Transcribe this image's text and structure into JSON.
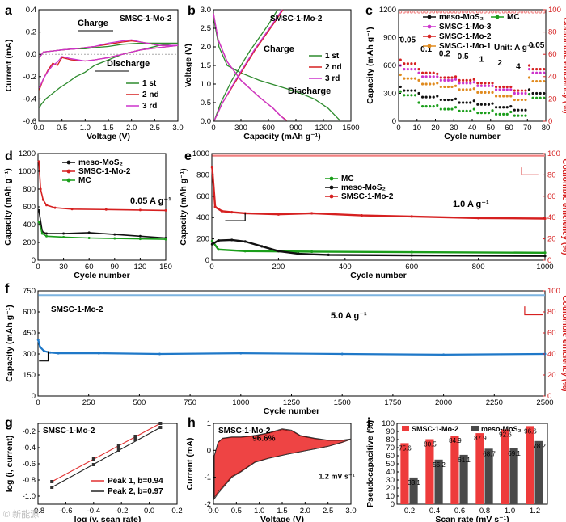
{
  "figure": {
    "watermark": "© 新能源"
  },
  "chart_data": [
    {
      "id": "a",
      "type": "line",
      "panel_label": "a",
      "title": "SMSC-1-Mo-2",
      "xlabel": "Voltage (V)",
      "ylabel": "Current (mA)",
      "xlim": [
        0,
        3
      ],
      "ylim": [
        -0.6,
        0.4
      ],
      "xticks": [
        0,
        0.5,
        1,
        1.5,
        2,
        2.5,
        3
      ],
      "xtick_labels": [
        "0.0",
        "0.5",
        "1.0",
        "1.5",
        "2.0",
        "2.5",
        "3.0"
      ],
      "yticks": [
        -0.6,
        -0.4,
        -0.2,
        0,
        0.2,
        0.4
      ],
      "ytick_labels": [
        "-0.6",
        "-0.4",
        "-0.2",
        "0.0",
        "0.2",
        "0.4"
      ],
      "annotations": [
        "Charge",
        "Discharge"
      ],
      "series": [
        {
          "name": "1 st",
          "color": "#2e8b2e",
          "x": [
            0.01,
            0.1,
            0.3,
            0.5,
            0.8,
            1.0,
            1.2,
            1.5,
            1.8,
            2.2,
            2.6,
            3.0,
            2.6,
            2.2,
            2.0,
            1.8,
            1.5,
            1.2,
            1.0,
            0.8,
            0.6,
            0.45,
            0.3,
            0.15,
            0.05,
            0.01
          ],
          "y": [
            -0.03,
            0.02,
            0.03,
            0.04,
            0.05,
            0.05,
            0.06,
            0.07,
            0.09,
            0.1,
            0.1,
            0.1,
            0.08,
            0.04,
            0.02,
            0.0,
            -0.05,
            -0.1,
            -0.16,
            -0.2,
            -0.26,
            -0.3,
            -0.35,
            -0.4,
            -0.45,
            -0.48
          ]
        },
        {
          "name": "2 nd",
          "color": "#d62020",
          "x": [
            0.01,
            0.1,
            0.3,
            0.5,
            0.8,
            1.0,
            1.2,
            1.5,
            1.8,
            2.0,
            2.2,
            2.6,
            3.0,
            2.6,
            2.2,
            2.0,
            1.8,
            1.5,
            1.2,
            1.0,
            0.7,
            0.5,
            0.4,
            0.3,
            0.2,
            0.1,
            0.01
          ],
          "y": [
            -0.03,
            0.02,
            0.03,
            0.04,
            0.05,
            0.06,
            0.07,
            0.09,
            0.11,
            0.12,
            0.11,
            0.08,
            0.08,
            0.06,
            0.04,
            0.02,
            0.0,
            -0.03,
            -0.05,
            -0.06,
            -0.05,
            -0.03,
            -0.1,
            -0.08,
            -0.14,
            -0.22,
            -0.32
          ]
        },
        {
          "name": "3 rd",
          "color": "#cc33cc",
          "x": [
            0.01,
            0.1,
            0.3,
            0.5,
            0.8,
            1.0,
            1.2,
            1.5,
            1.8,
            2.0,
            2.2,
            2.6,
            3.0,
            2.6,
            2.2,
            2.0,
            1.8,
            1.5,
            1.2,
            1.0,
            0.7,
            0.5,
            0.4,
            0.3,
            0.2,
            0.1,
            0.01
          ],
          "y": [
            -0.03,
            0.02,
            0.03,
            0.04,
            0.05,
            0.06,
            0.07,
            0.1,
            0.12,
            0.13,
            0.11,
            0.08,
            0.08,
            0.06,
            0.04,
            0.02,
            0.0,
            -0.03,
            -0.05,
            -0.06,
            -0.04,
            -0.02,
            -0.07,
            -0.1,
            -0.15,
            -0.22,
            -0.3
          ]
        }
      ]
    },
    {
      "id": "b",
      "type": "line",
      "panel_label": "b",
      "title": "SMSC-1-Mo-2",
      "xlabel": "Capacity (mAh g⁻¹)",
      "ylabel": "Voltage (V)",
      "xlim": [
        0,
        1500
      ],
      "ylim": [
        0,
        3
      ],
      "xticks": [
        0,
        300,
        600,
        900,
        1200,
        1500
      ],
      "xtick_labels": [
        "0",
        "300",
        "600",
        "900",
        "1200",
        "1500"
      ],
      "yticks": [
        0,
        0.5,
        1,
        1.5,
        2,
        2.5,
        3
      ],
      "ytick_labels": [
        "0.0",
        "0.5",
        "1.0",
        "1.5",
        "2.0",
        "2.5",
        "3.0"
      ],
      "annotations": [
        "Charge",
        "Discharge"
      ],
      "series": [
        {
          "name": "1 st",
          "color": "#2e8b2e",
          "x": [
            0,
            60,
            150,
            300,
            500,
            700,
            900,
            1100,
            1250,
            1380,
            700,
            600,
            400,
            200,
            80,
            10
          ],
          "y": [
            2.8,
            2.0,
            1.5,
            1.3,
            1.1,
            0.95,
            0.8,
            0.6,
            0.35,
            0.02,
            3.0,
            2.6,
            1.9,
            1.1,
            0.5,
            0.02
          ]
        },
        {
          "name": "2 nd",
          "color": "#d62020",
          "x": [
            0,
            50,
            150,
            300,
            500,
            650,
            730,
            800,
            760,
            650,
            450,
            250,
            100,
            10
          ],
          "y": [
            2.9,
            2.2,
            1.6,
            1.1,
            0.65,
            0.35,
            0.15,
            0.02,
            3.0,
            2.6,
            1.9,
            1.1,
            0.5,
            0.02
          ]
        },
        {
          "name": "3 rd",
          "color": "#cc33cc",
          "x": [
            0,
            50,
            150,
            300,
            500,
            650,
            730,
            790,
            750,
            640,
            440,
            240,
            100,
            10
          ],
          "y": [
            2.9,
            2.2,
            1.6,
            1.1,
            0.65,
            0.35,
            0.15,
            0.02,
            3.0,
            2.6,
            1.9,
            1.1,
            0.5,
            0.02
          ]
        }
      ]
    },
    {
      "id": "c",
      "type": "scatter",
      "panel_label": "c",
      "xlabel": "Cycle number",
      "ylabel": "Capacity (mAh g⁻¹)",
      "y2label": "Coulombic efficiency (%)",
      "xlim": [
        0,
        80
      ],
      "ylim": [
        0,
        1200
      ],
      "y2lim": [
        0,
        100
      ],
      "xticks": [
        0,
        10,
        20,
        30,
        40,
        50,
        60,
        70,
        80
      ],
      "yticks": [
        0,
        300,
        600,
        900,
        1200
      ],
      "y2ticks": [
        0,
        20,
        40,
        60,
        80,
        100
      ],
      "rate_labels": [
        "0.05",
        "0.1",
        "0.2",
        "0.5",
        "1",
        "2",
        "4",
        "0.05"
      ],
      "unit_note": "Unit: A g⁻¹",
      "series": [
        {
          "name": "meso-MoS₂",
          "color": "#111111",
          "levels": [
            330,
            260,
            230,
            200,
            180,
            150,
            120,
            300
          ]
        },
        {
          "name": "MC",
          "color": "#1a9e1a",
          "levels": [
            280,
            160,
            130,
            110,
            90,
            75,
            60,
            250
          ]
        },
        {
          "name": "SMSC-1-Mo-3",
          "color": "#cc33cc",
          "levels": [
            560,
            480,
            440,
            410,
            380,
            340,
            300,
            520
          ]
        },
        {
          "name": "SMSC-1-Mo-2",
          "color": "#d62020",
          "levels": [
            620,
            520,
            470,
            440,
            410,
            370,
            330,
            560
          ]
        },
        {
          "name": "SMSC-1-Mo-1",
          "color": "#e08a1e",
          "levels": [
            460,
            400,
            370,
            340,
            310,
            270,
            230,
            430
          ]
        }
      ],
      "ce_percent": 98
    },
    {
      "id": "d",
      "type": "scatter",
      "panel_label": "d",
      "xlabel": "Cycle number",
      "ylabel": "Capacity (mAh g⁻¹)",
      "xlim": [
        0,
        150
      ],
      "ylim": [
        0,
        1200
      ],
      "xticks": [
        0,
        30,
        60,
        90,
        120,
        150
      ],
      "yticks": [
        0,
        200,
        400,
        600,
        800,
        1000,
        1200
      ],
      "annotations": [
        "0.05 A g⁻¹"
      ],
      "series": [
        {
          "name": "meso-MoS₂",
          "color": "#111111",
          "x": [
            1,
            5,
            10,
            30,
            60,
            90,
            120,
            150
          ],
          "y": [
            560,
            320,
            300,
            300,
            310,
            290,
            270,
            250
          ]
        },
        {
          "name": "SMSC-1-Mo-2",
          "color": "#d62020",
          "x": [
            1,
            3,
            6,
            10,
            20,
            40,
            80,
            120,
            150
          ],
          "y": [
            1110,
            800,
            680,
            620,
            590,
            575,
            570,
            565,
            560
          ]
        },
        {
          "name": "MC",
          "color": "#1a9e1a",
          "x": [
            1,
            5,
            10,
            30,
            60,
            90,
            120,
            150
          ],
          "y": [
            430,
            300,
            270,
            260,
            250,
            245,
            240,
            235
          ]
        }
      ]
    },
    {
      "id": "e",
      "type": "scatter",
      "panel_label": "e",
      "xlabel": "Cycle number",
      "ylabel": "Capacity (mAh g⁻¹)",
      "y2label": "Coulombic efficiency (%)",
      "xlim": [
        0,
        1000
      ],
      "ylim": [
        0,
        1000
      ],
      "y2lim": [
        0,
        100
      ],
      "xticks": [
        0,
        200,
        400,
        600,
        800,
        1000
      ],
      "yticks": [
        0,
        200,
        400,
        600,
        800,
        1000
      ],
      "y2ticks": [
        0,
        20,
        40,
        60,
        80,
        100
      ],
      "annotations": [
        "1.0 A g⁻¹"
      ],
      "series": [
        {
          "name": "MC",
          "color": "#1a9e1a",
          "x": [
            1,
            20,
            100,
            300,
            600,
            1000
          ],
          "y": [
            180,
            100,
            85,
            80,
            75,
            70
          ]
        },
        {
          "name": "meso-MoS₂",
          "color": "#111111",
          "x": [
            1,
            20,
            60,
            100,
            150,
            200,
            260,
            350,
            600,
            1000
          ],
          "y": [
            150,
            185,
            190,
            175,
            130,
            85,
            60,
            50,
            45,
            40
          ]
        },
        {
          "name": "SMSC-1-Mo-2",
          "color": "#d62020",
          "x": [
            1,
            10,
            30,
            60,
            100,
            200,
            300,
            450,
            600,
            800,
            1000
          ],
          "y": [
            870,
            500,
            460,
            450,
            440,
            430,
            440,
            420,
            410,
            395,
            390
          ]
        }
      ],
      "ce_percent": 98
    },
    {
      "id": "f",
      "type": "scatter",
      "panel_label": "f",
      "title": "SMSC-1-Mo-2",
      "xlabel": "Cycle number",
      "ylabel": "Capacity (mAh g⁻¹)",
      "y2label": "Coulombic efficiency (%)",
      "xlim": [
        0,
        2500
      ],
      "ylim": [
        0,
        750
      ],
      "y2lim": [
        0,
        100
      ],
      "xticks": [
        0,
        250,
        500,
        750,
        1000,
        1250,
        1500,
        1750,
        2000,
        2250,
        2500
      ],
      "yticks": [
        0,
        150,
        300,
        450,
        600,
        750
      ],
      "y2ticks": [
        0,
        20,
        40,
        60,
        80,
        100
      ],
      "annotations": [
        "5.0 A g⁻¹"
      ],
      "series": [
        {
          "name": "SMSC-1-Mo-2",
          "color": "#1f78c8",
          "x": [
            1,
            10,
            30,
            60,
            100,
            300,
            600,
            1000,
            1500,
            2000,
            2500
          ],
          "y": [
            400,
            350,
            320,
            310,
            305,
            305,
            300,
            305,
            300,
            295,
            300
          ]
        }
      ],
      "ce_percent": 96
    },
    {
      "id": "g",
      "type": "scatter",
      "panel_label": "g",
      "title": "SMSC-1-Mo-2",
      "xlabel": "log (v, scan rate)",
      "ylabel": "log (i, current)",
      "xlim": [
        -0.8,
        0.2
      ],
      "ylim": [
        -1.1,
        -0.1
      ],
      "xticks": [
        -0.8,
        -0.6,
        -0.4,
        -0.2,
        0.0,
        0.2
      ],
      "xtick_labels": [
        "-0.8",
        "-0.6",
        "-0.4",
        "-0.2",
        "0.0",
        "0.2"
      ],
      "yticks": [
        -1.0,
        -0.8,
        -0.6,
        -0.4,
        -0.2
      ],
      "ytick_labels": [
        "-1.0",
        "-0.8",
        "-0.6",
        "-0.4",
        "-0.2"
      ],
      "series": [
        {
          "name": "Peak 1, b=0.94",
          "color": "#e03030",
          "x": [
            -0.7,
            -0.4,
            -0.22,
            -0.1,
            0.08
          ],
          "y": [
            -0.82,
            -0.54,
            -0.38,
            -0.26,
            -0.1
          ]
        },
        {
          "name": "Peak 2, b=0.97",
          "color": "#222222",
          "x": [
            -0.7,
            -0.4,
            -0.22,
            -0.1,
            0.08
          ],
          "y": [
            -0.89,
            -0.61,
            -0.43,
            -0.3,
            -0.15
          ]
        }
      ]
    },
    {
      "id": "h",
      "type": "area",
      "panel_label": "h",
      "title": "SMSC-1-Mo-2",
      "xlabel": "Voltage (V)",
      "ylabel": "Current (mA)",
      "xlim": [
        0,
        3
      ],
      "ylim": [
        -2,
        1
      ],
      "xticks": [
        0,
        0.5,
        1,
        1.5,
        2,
        2.5,
        3
      ],
      "xtick_labels": [
        "0.0",
        "0.5",
        "1.0",
        "1.5",
        "2.0",
        "2.5",
        "3.0"
      ],
      "yticks": [
        -2,
        -1,
        0,
        1
      ],
      "annotations": [
        "96.6%",
        "1.2 mV s⁻¹"
      ],
      "outer_curve": {
        "x": [
          0.02,
          0.1,
          0.2,
          0.4,
          0.6,
          0.9,
          1.2,
          1.5,
          1.7,
          1.9,
          2.2,
          2.5,
          2.8,
          3.0,
          2.8,
          2.5,
          2.2,
          1.9,
          1.6,
          1.2,
          0.9,
          0.6,
          0.4,
          0.25,
          0.1,
          0.02
        ],
        "y": [
          -0.2,
          0.3,
          0.45,
          0.5,
          0.5,
          0.55,
          0.65,
          0.8,
          0.75,
          0.55,
          0.45,
          0.38,
          0.38,
          0.42,
          0.3,
          0.15,
          0.05,
          -0.05,
          -0.15,
          -0.3,
          -0.45,
          -0.8,
          -1.0,
          -1.3,
          -1.6,
          -1.8
        ]
      },
      "capacitive_fraction": 0.966
    },
    {
      "id": "i",
      "type": "bar",
      "panel_label": "i",
      "xlabel": "Scan rate (mV s⁻¹)",
      "ylabel": "Pseudocapacitive (%)",
      "ylim": [
        0,
        100
      ],
      "yticks": [
        0,
        10,
        20,
        30,
        40,
        50,
        60,
        70,
        80,
        90,
        100
      ],
      "categories": [
        "0.2",
        "0.4",
        "0.6",
        "0.8",
        "1.0",
        "1.2"
      ],
      "series": [
        {
          "name": "SMSC-1-Mo-2",
          "color": "#ee3b3b",
          "values": [
            75.6,
            80.5,
            84.9,
            87.9,
            92.6,
            96.6
          ]
        },
        {
          "name": "meso-MoS₂",
          "color": "#4a4a4a",
          "values": [
            33.1,
            55.2,
            61.1,
            68.7,
            69.1,
            78.2
          ]
        }
      ]
    }
  ]
}
